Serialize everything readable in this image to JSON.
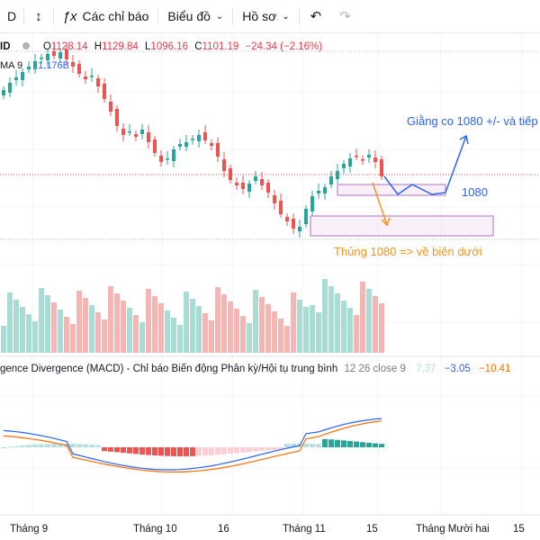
{
  "toolbar": {
    "symbol_fragment": "D",
    "compare_icon": "compare-arrows-icon",
    "indicators_label": "Các chỉ báo",
    "charts_label": "Biểu đồ",
    "profile_label": "Hồ sơ",
    "undo_icon": "undo-icon",
    "redo_icon": "redo-icon"
  },
  "legend": {
    "interval_fragment": "ID",
    "open_key": "O",
    "open": "1128.14",
    "high_key": "H",
    "high": "1129.84",
    "low_key": "L",
    "low": "1096.16",
    "close_key": "C",
    "close": "1101.19",
    "change": "−24.34 (−2.16%)",
    "ma_label": "MA 9",
    "ma_value": "1,176B"
  },
  "annotations": {
    "upper": "Giằng co 1080 +/- và tiếp",
    "level": "1080",
    "lower": "Thủng 1080 => về biên dưới"
  },
  "macd": {
    "title": "gence Divergence (MACD) - Chỉ báo Biến động Phân kỳ/Hội tụ trung bình",
    "params": "12 26 close 9",
    "hist": "7.37",
    "macd": "−3.05",
    "signal": "−10.41"
  },
  "xaxis": {
    "labels": [
      {
        "text": "Tháng 9"
      },
      {
        "text": "Tháng 10"
      },
      {
        "text": "16"
      },
      {
        "text": "Tháng 11"
      },
      {
        "text": "15"
      },
      {
        "text": "Tháng Mười hai"
      },
      {
        "text": "15"
      }
    ]
  },
  "colors": {
    "up": "#26a69a",
    "down": "#ef5350",
    "ma": "#2962ff",
    "signal": "#ff6d00",
    "annot_blue": "#2962ff",
    "annot_orange": "#f7931a",
    "rect": "#b070c0"
  }
}
